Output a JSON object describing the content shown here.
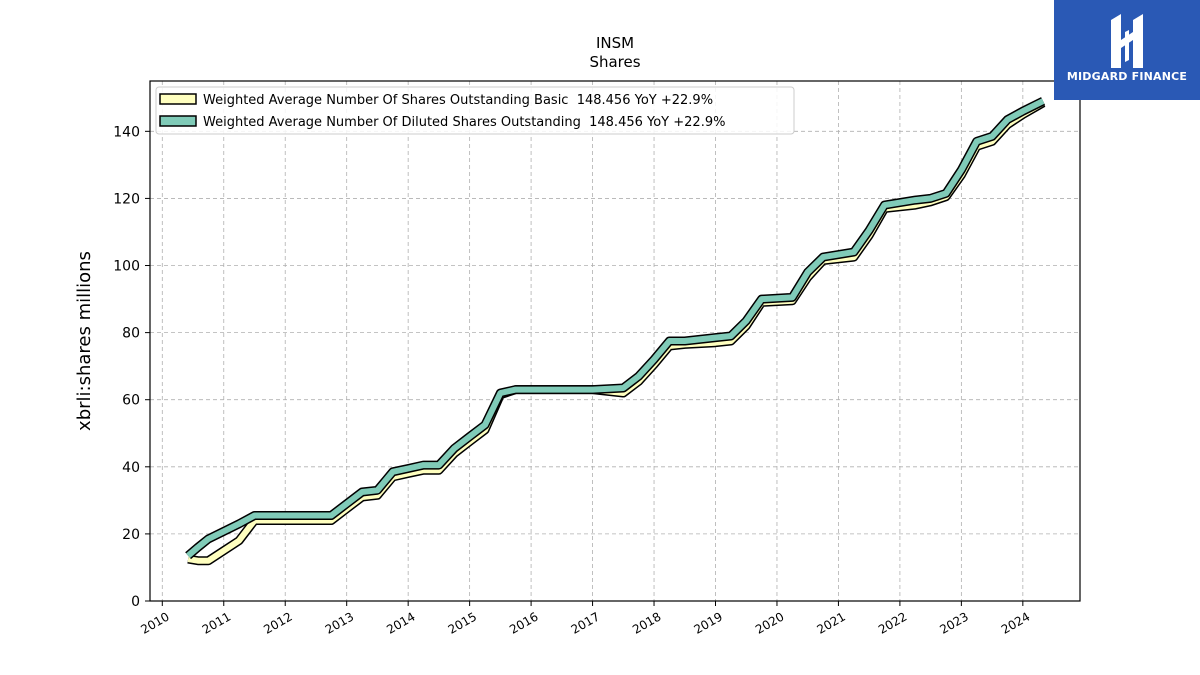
{
  "chart_data": {
    "type": "line",
    "title": "INSM",
    "subtitle": "Shares",
    "ylabel": "xbrli:shares millions",
    "xlabel": "",
    "xlim": [
      2009.8,
      2024.93
    ],
    "ylim": [
      0,
      155
    ],
    "yticks": [
      0,
      20,
      40,
      60,
      80,
      100,
      120,
      140
    ],
    "xticks": [
      "2010",
      "2011",
      "2012",
      "2013",
      "2014",
      "2015",
      "2016",
      "2017",
      "2018",
      "2019",
      "2020",
      "2021",
      "2022",
      "2023",
      "2024"
    ],
    "grid": true,
    "legend_position": "top-left",
    "series": [
      {
        "name": "Weighted Average Number Of Shares Outstanding Basic  148.456 YoY +22.9%",
        "color": "#ffffbf",
        "x": [
          2010.42,
          2010.58,
          2010.75,
          2011.25,
          2011.5,
          2012.0,
          2012.5,
          2012.75,
          2013.0,
          2013.25,
          2013.5,
          2013.75,
          2014.0,
          2014.25,
          2014.5,
          2014.75,
          2015.0,
          2015.25,
          2015.5,
          2015.75,
          2016.0,
          2016.5,
          2017.0,
          2017.5,
          2017.75,
          2018.0,
          2018.25,
          2018.5,
          2019.0,
          2019.25,
          2019.5,
          2019.75,
          2020.25,
          2020.5,
          2020.75,
          2021.25,
          2021.5,
          2021.75,
          2022.25,
          2022.5,
          2022.75,
          2023.0,
          2023.25,
          2023.5,
          2023.75,
          2024.0,
          2024.33
        ],
        "values": [
          12.5,
          12.0,
          12.0,
          18.0,
          24.0,
          24.0,
          24.0,
          24.0,
          27.5,
          31.0,
          31.5,
          37.0,
          38.0,
          39.0,
          39.0,
          44.0,
          47.5,
          51.0,
          61.5,
          63.0,
          63.0,
          63.0,
          63.0,
          62.0,
          65.5,
          70.5,
          76.0,
          76.5,
          77.0,
          77.5,
          82.0,
          89.0,
          89.5,
          96.5,
          101.5,
          102.5,
          109.0,
          117.0,
          118.0,
          119.0,
          120.5,
          127.0,
          135.5,
          137.0,
          142.0,
          145.0,
          148.5
        ]
      },
      {
        "name": "Weighted Average Number Of Diluted Shares Outstanding  148.456 YoY +22.9%",
        "color": "#80cbb8",
        "x": [
          2010.42,
          2010.58,
          2010.75,
          2011.25,
          2011.5,
          2012.0,
          2012.5,
          2012.75,
          2013.0,
          2013.25,
          2013.5,
          2013.75,
          2014.0,
          2014.25,
          2014.5,
          2014.75,
          2015.0,
          2015.25,
          2015.5,
          2015.75,
          2016.0,
          2016.5,
          2017.0,
          2017.5,
          2017.75,
          2018.0,
          2018.25,
          2018.5,
          2019.0,
          2019.25,
          2019.5,
          2019.75,
          2020.25,
          2020.5,
          2020.75,
          2021.25,
          2021.5,
          2021.75,
          2022.25,
          2022.5,
          2022.75,
          2023.0,
          2023.25,
          2023.5,
          2023.75,
          2024.0,
          2024.33
        ],
        "values": [
          13.5,
          16.0,
          18.5,
          23.0,
          25.5,
          25.5,
          25.5,
          25.5,
          29.0,
          32.5,
          33.0,
          38.5,
          39.5,
          40.5,
          40.5,
          45.5,
          49.0,
          52.5,
          62.0,
          63.0,
          63.0,
          63.0,
          63.0,
          63.5,
          67.0,
          72.0,
          77.5,
          77.5,
          78.5,
          79.0,
          83.5,
          90.0,
          90.5,
          98.0,
          102.5,
          104.0,
          110.5,
          118.0,
          119.5,
          120.0,
          121.5,
          128.5,
          137.0,
          138.5,
          143.5,
          146.0,
          149.0
        ]
      }
    ]
  },
  "logo": {
    "text": "MIDGARD FINANCE",
    "color": "#2a59b5",
    "icon": "midgard-logo-icon"
  }
}
